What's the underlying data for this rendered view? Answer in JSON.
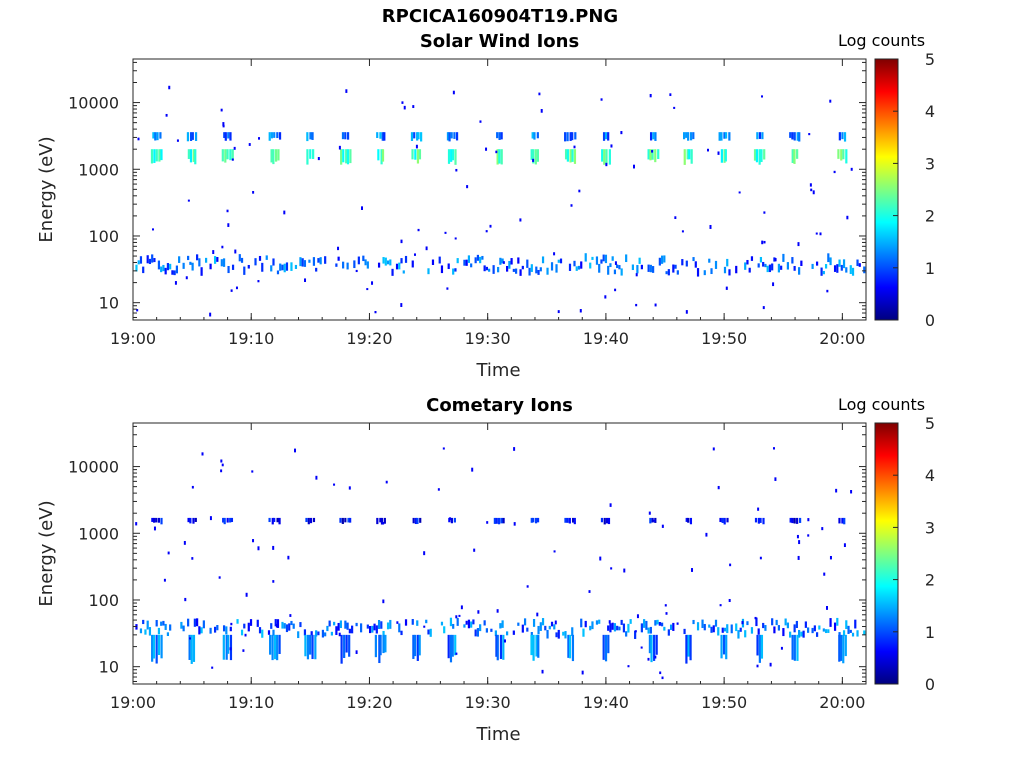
{
  "figure_title": "RPCICA160904T19.PNG",
  "colorbar": {
    "label": "Log counts",
    "ticks": [
      "0",
      "1",
      "2",
      "3",
      "4",
      "5"
    ],
    "range": [
      0,
      5
    ],
    "colormap": "jet"
  },
  "chart_data": [
    {
      "type": "heatmap",
      "title": "Solar Wind Ions",
      "xlabel": "Time",
      "ylabel": "Energy (eV)",
      "yscale": "log",
      "ylim": [
        5.5,
        45000
      ],
      "xlim_minutes_after_19": [
        0,
        62
      ],
      "x_ticks": [
        "19:00",
        "19:10",
        "19:20",
        "19:30",
        "19:40",
        "19:50",
        "20:00"
      ],
      "y_ticks": [
        "10",
        "100",
        "1000",
        "10000"
      ],
      "bands": [
        {
          "energy_range_eV": [
            28,
            48
          ],
          "log_counts": 1.0,
          "description": "continuous low-energy band"
        },
        {
          "energy_range_eV": [
            1150,
            2000
          ],
          "log_counts": 2.2,
          "description": "periodic solar wind proton peak"
        },
        {
          "energy_range_eV": [
            2600,
            3600
          ],
          "log_counts": 1.2,
          "description": "periodic alpha peak"
        }
      ],
      "pulse_times": [
        "19:02",
        "19:05",
        "19:08",
        "19:12",
        "19:15",
        "19:18",
        "19:21",
        "19:24",
        "19:27",
        "19:31",
        "19:34",
        "19:37",
        "19:40",
        "19:44",
        "19:47",
        "19:50",
        "19:53",
        "19:56",
        "20:00"
      ]
    },
    {
      "type": "heatmap",
      "title": "Cometary Ions",
      "xlabel": "Time",
      "ylabel": "Energy (eV)",
      "yscale": "log",
      "ylim": [
        5.5,
        45000
      ],
      "xlim_minutes_after_19": [
        0,
        62
      ],
      "x_ticks": [
        "19:00",
        "19:10",
        "19:20",
        "19:30",
        "19:40",
        "19:50",
        "20:00"
      ],
      "y_ticks": [
        "10",
        "100",
        "1000",
        "10000"
      ],
      "bands": [
        {
          "energy_range_eV": [
            30,
            48
          ],
          "log_counts": 1.0,
          "description": "continuous band"
        },
        {
          "energy_range_eV": [
            11,
            30
          ],
          "log_counts": 1.2,
          "description": "periodic low-energy bursts"
        },
        {
          "energy_range_eV": [
            1350,
            1700
          ],
          "log_counts": 0.6,
          "description": "periodic faint peak"
        }
      ],
      "pulse_times": [
        "19:02",
        "19:05",
        "19:08",
        "19:12",
        "19:15",
        "19:18",
        "19:21",
        "19:24",
        "19:27",
        "19:31",
        "19:34",
        "19:37",
        "19:40",
        "19:44",
        "19:47",
        "19:50",
        "19:53",
        "19:56",
        "20:00"
      ]
    }
  ]
}
